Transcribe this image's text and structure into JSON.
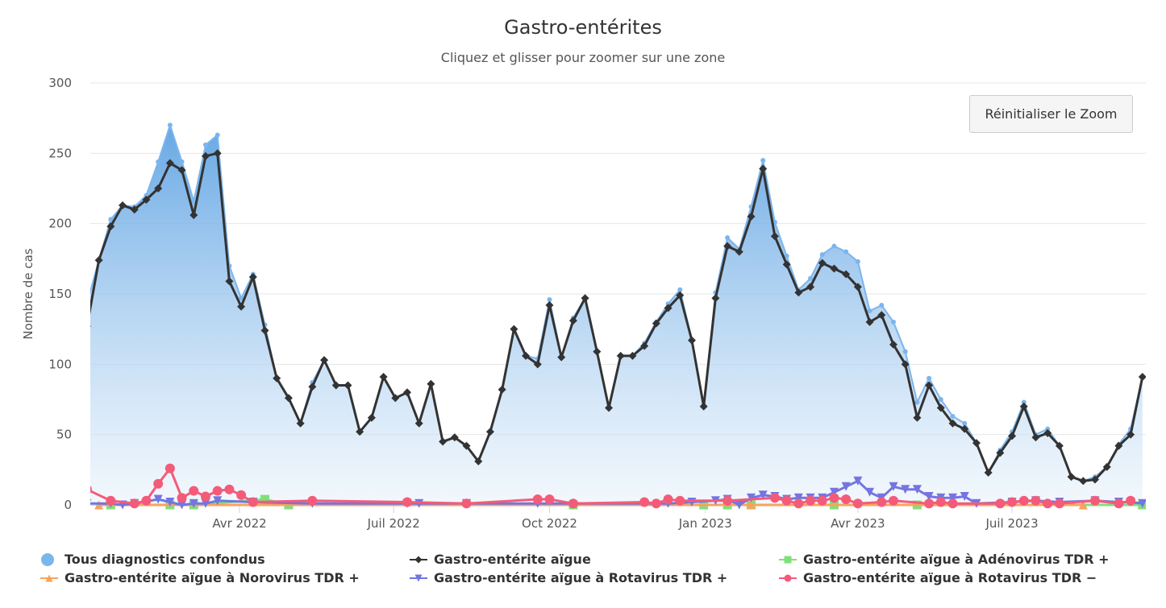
{
  "chart_data": {
    "type": "area+line",
    "title": "Gastro-entérites",
    "subtitle": "Cliquez et glisser pour zoomer sur une zone",
    "ylabel": "Nombre de cas",
    "ylim": [
      0,
      300
    ],
    "yticks": [
      0,
      50,
      100,
      150,
      200,
      250,
      300
    ],
    "xticks": [
      {
        "date": "2022-04-01",
        "label": "Avr 2022"
      },
      {
        "date": "2022-07-01",
        "label": "Juil 2022"
      },
      {
        "date": "2022-10-01",
        "label": "Oct 2022"
      },
      {
        "date": "2023-01-01",
        "label": "Jan 2023"
      },
      {
        "date": "2023-04-01",
        "label": "Avr 2023"
      },
      {
        "date": "2023-07-01",
        "label": "Juil 2023"
      }
    ],
    "grid": true,
    "legend_position": "bottom",
    "dates": [
      "2022-01-01",
      "2022-01-08",
      "2022-01-15",
      "2022-01-22",
      "2022-01-29",
      "2022-02-05",
      "2022-02-12",
      "2022-02-19",
      "2022-02-26",
      "2022-03-05",
      "2022-03-12",
      "2022-03-19",
      "2022-03-26",
      "2022-04-02",
      "2022-04-09",
      "2022-04-16",
      "2022-04-23",
      "2022-04-30",
      "2022-05-07",
      "2022-05-14",
      "2022-05-21",
      "2022-05-28",
      "2022-06-04",
      "2022-06-11",
      "2022-06-18",
      "2022-06-25",
      "2022-07-02",
      "2022-07-09",
      "2022-07-16",
      "2022-07-23",
      "2022-07-30",
      "2022-08-06",
      "2022-08-13",
      "2022-08-20",
      "2022-08-27",
      "2022-09-03",
      "2022-09-10",
      "2022-09-17",
      "2022-09-24",
      "2022-10-01",
      "2022-10-08",
      "2022-10-15",
      "2022-10-22",
      "2022-10-29",
      "2022-11-05",
      "2022-11-12",
      "2022-11-19",
      "2022-11-26",
      "2022-12-03",
      "2022-12-10",
      "2022-12-17",
      "2022-12-24",
      "2022-12-31",
      "2023-01-07",
      "2023-01-14",
      "2023-01-21",
      "2023-01-28",
      "2023-02-04",
      "2023-02-11",
      "2023-02-18",
      "2023-02-25",
      "2023-03-04",
      "2023-03-11",
      "2023-03-18",
      "2023-03-25",
      "2023-04-01",
      "2023-04-08",
      "2023-04-15",
      "2023-04-22",
      "2023-04-29",
      "2023-05-06",
      "2023-05-13",
      "2023-05-20",
      "2023-05-27",
      "2023-06-03",
      "2023-06-10",
      "2023-06-17",
      "2023-06-24",
      "2023-07-01",
      "2023-07-08",
      "2023-07-15",
      "2023-07-22",
      "2023-07-29",
      "2023-08-05",
      "2023-08-12",
      "2023-08-19",
      "2023-08-26",
      "2023-09-02",
      "2023-09-09",
      "2023-09-16"
    ],
    "series": [
      {
        "name": "Tous diagnostics confondus",
        "kind": "area",
        "marker": "circle",
        "color": "#7cb5ec",
        "values": [
          143,
          174,
          203,
          213,
          212,
          220,
          244,
          270,
          244,
          216,
          256,
          263,
          170,
          147,
          164,
          128,
          90,
          76,
          58,
          87,
          103,
          85,
          85,
          52,
          62,
          91,
          76,
          80,
          58,
          86,
          45,
          48,
          42,
          31,
          52,
          82,
          125,
          106,
          104,
          146,
          105,
          133,
          147,
          109,
          69,
          106,
          106,
          115,
          130,
          143,
          153,
          117,
          71,
          151,
          190,
          182,
          212,
          245,
          201,
          177,
          153,
          161,
          178,
          184,
          180,
          173,
          138,
          142,
          130,
          109,
          73,
          90,
          75,
          63,
          58,
          44,
          23,
          39,
          52,
          73,
          50,
          54,
          42,
          20,
          17,
          20,
          27,
          43,
          54,
          91
        ]
      },
      {
        "name": "Gastro-entérite aïgue",
        "kind": "line",
        "marker": "diamond",
        "color": "#333333",
        "values": [
          127,
          174,
          198,
          213,
          210,
          217,
          225,
          243,
          238,
          206,
          248,
          250,
          159,
          141,
          162,
          124,
          90,
          76,
          58,
          84,
          103,
          85,
          85,
          52,
          62,
          91,
          76,
          80,
          58,
          86,
          45,
          48,
          42,
          31,
          52,
          82,
          125,
          106,
          100,
          142,
          105,
          131,
          147,
          109,
          69,
          106,
          106,
          113,
          129,
          140,
          149,
          117,
          70,
          147,
          184,
          180,
          205,
          239,
          191,
          171,
          151,
          155,
          172,
          168,
          164,
          155,
          130,
          135,
          114,
          100,
          62,
          85,
          69,
          58,
          54,
          44,
          23,
          37,
          49,
          70,
          48,
          51,
          42,
          20,
          17,
          18,
          27,
          42,
          50,
          91
        ]
      },
      {
        "name": "Gastro-entérite aïgue à Adénovirus TDR +",
        "kind": "line",
        "marker": "square",
        "color": "#7fe07a",
        "points": [
          [
            "2022-01-15",
            0
          ],
          [
            "2022-02-19",
            0
          ],
          [
            "2022-03-05",
            0
          ],
          [
            "2022-04-16",
            4
          ],
          [
            "2022-04-30",
            0
          ],
          [
            "2022-10-15",
            0
          ],
          [
            "2022-12-31",
            0
          ],
          [
            "2023-01-14",
            0
          ],
          [
            "2023-01-28",
            0
          ],
          [
            "2023-03-18",
            0
          ],
          [
            "2023-05-06",
            0
          ],
          [
            "2023-09-16",
            0
          ]
        ]
      },
      {
        "name": "Gastro-entérite aïgue à Norovirus TDR +",
        "kind": "line",
        "marker": "triangle",
        "color": "#f7a35c",
        "points": [
          [
            "2022-01-08",
            0
          ],
          [
            "2023-01-28",
            0
          ],
          [
            "2023-08-12",
            0
          ]
        ]
      },
      {
        "name": "Gastro-entérite aïgue à Rotavirus TDR +",
        "kind": "line",
        "marker": "triangle-down",
        "color": "#7475e0",
        "points": [
          [
            "2022-01-01",
            1
          ],
          [
            "2022-01-15",
            1
          ],
          [
            "2022-01-22",
            0
          ],
          [
            "2022-01-29",
            1
          ],
          [
            "2022-02-12",
            4
          ],
          [
            "2022-02-19",
            2
          ],
          [
            "2022-02-26",
            0
          ],
          [
            "2022-03-05",
            1
          ],
          [
            "2022-03-12",
            1
          ],
          [
            "2022-03-19",
            3
          ],
          [
            "2022-04-09",
            2
          ],
          [
            "2022-05-14",
            1
          ],
          [
            "2022-07-09",
            1
          ],
          [
            "2022-07-16",
            1
          ],
          [
            "2022-08-13",
            1
          ],
          [
            "2022-09-24",
            1
          ],
          [
            "2022-12-10",
            1
          ],
          [
            "2022-12-24",
            2
          ],
          [
            "2023-01-07",
            3
          ],
          [
            "2023-01-14",
            4
          ],
          [
            "2023-01-21",
            0
          ],
          [
            "2023-01-28",
            5
          ],
          [
            "2023-02-04",
            7
          ],
          [
            "2023-02-11",
            6
          ],
          [
            "2023-02-18",
            4
          ],
          [
            "2023-02-25",
            5
          ],
          [
            "2023-03-04",
            5
          ],
          [
            "2023-03-11",
            5
          ],
          [
            "2023-03-18",
            9
          ],
          [
            "2023-03-25",
            13
          ],
          [
            "2023-04-01",
            17
          ],
          [
            "2023-04-08",
            9
          ],
          [
            "2023-04-15",
            5
          ],
          [
            "2023-04-22",
            13
          ],
          [
            "2023-04-29",
            11
          ],
          [
            "2023-05-06",
            11
          ],
          [
            "2023-05-13",
            6
          ],
          [
            "2023-05-20",
            5
          ],
          [
            "2023-05-27",
            5
          ],
          [
            "2023-06-03",
            6
          ],
          [
            "2023-06-10",
            1
          ],
          [
            "2023-07-01",
            2
          ],
          [
            "2023-07-15",
            3
          ],
          [
            "2023-07-29",
            2
          ],
          [
            "2023-08-19",
            3
          ],
          [
            "2023-09-02",
            2
          ],
          [
            "2023-09-09",
            2
          ],
          [
            "2023-09-16",
            1
          ]
        ]
      },
      {
        "name": "Gastro-entérite aïgue à Rotavirus TDR −",
        "kind": "line",
        "marker": "circle",
        "color": "#f45b79",
        "points": [
          [
            "2022-01-01",
            11
          ],
          [
            "2022-01-15",
            3
          ],
          [
            "2022-01-29",
            1
          ],
          [
            "2022-02-05",
            3
          ],
          [
            "2022-02-12",
            15
          ],
          [
            "2022-02-19",
            26
          ],
          [
            "2022-02-26",
            5
          ],
          [
            "2022-03-05",
            10
          ],
          [
            "2022-03-12",
            6
          ],
          [
            "2022-03-19",
            10
          ],
          [
            "2022-03-26",
            11
          ],
          [
            "2022-04-02",
            7
          ],
          [
            "2022-04-09",
            2
          ],
          [
            "2022-05-14",
            3
          ],
          [
            "2022-07-09",
            2
          ],
          [
            "2022-08-13",
            1
          ],
          [
            "2022-09-24",
            4
          ],
          [
            "2022-10-01",
            4
          ],
          [
            "2022-10-15",
            1
          ],
          [
            "2022-11-26",
            2
          ],
          [
            "2022-12-03",
            1
          ],
          [
            "2022-12-10",
            4
          ],
          [
            "2022-12-17",
            3
          ],
          [
            "2023-01-14",
            3
          ],
          [
            "2023-02-11",
            5
          ],
          [
            "2023-02-18",
            3
          ],
          [
            "2023-02-25",
            1
          ],
          [
            "2023-03-04",
            3
          ],
          [
            "2023-03-11",
            3
          ],
          [
            "2023-03-18",
            5
          ],
          [
            "2023-03-25",
            4
          ],
          [
            "2023-04-01",
            1
          ],
          [
            "2023-04-15",
            2
          ],
          [
            "2023-04-22",
            3
          ],
          [
            "2023-05-13",
            1
          ],
          [
            "2023-05-20",
            2
          ],
          [
            "2023-05-27",
            1
          ],
          [
            "2023-06-24",
            1
          ],
          [
            "2023-07-01",
            2
          ],
          [
            "2023-07-08",
            3
          ],
          [
            "2023-07-15",
            3
          ],
          [
            "2023-07-22",
            1
          ],
          [
            "2023-07-29",
            1
          ],
          [
            "2023-08-19",
            3
          ],
          [
            "2023-09-02",
            1
          ],
          [
            "2023-09-09",
            3
          ]
        ]
      }
    ]
  },
  "reset_zoom_label": "Réinitialiser le Zoom"
}
